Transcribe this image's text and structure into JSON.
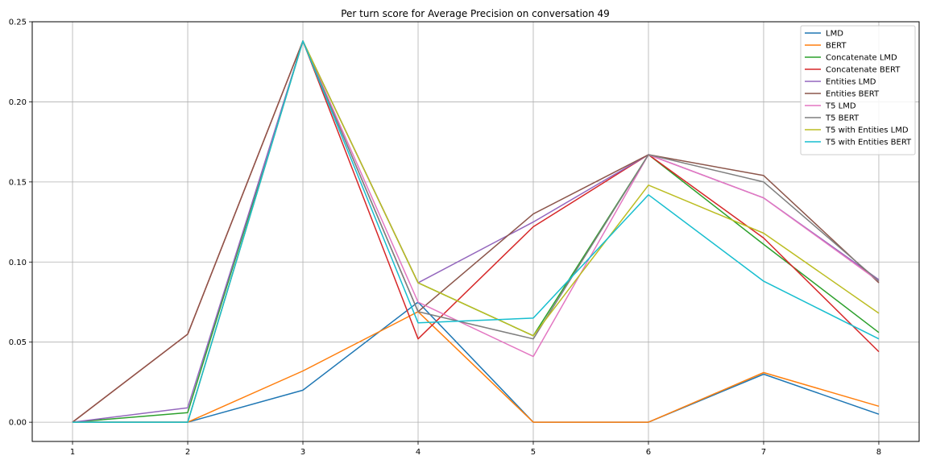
{
  "chart_data": {
    "type": "line",
    "title": "Per turn score for Average Precision on conversation 49",
    "xlabel": "",
    "ylabel": "",
    "x": [
      1,
      2,
      3,
      4,
      5,
      6,
      7,
      8
    ],
    "xlim": [
      0.65,
      8.35
    ],
    "ylim": [
      -0.012,
      0.25
    ],
    "xticks": [
      "1",
      "2",
      "3",
      "4",
      "5",
      "6",
      "7",
      "8"
    ],
    "yticks": [
      "0.00",
      "0.05",
      "0.10",
      "0.15",
      "0.20",
      "0.25"
    ],
    "grid": true,
    "legend_position": "top-right",
    "series": [
      {
        "name": "LMD",
        "color": "#1f77b4",
        "values": [
          0.0,
          0.0,
          0.02,
          0.075,
          0.0,
          0.0,
          0.03,
          0.005
        ]
      },
      {
        "name": "BERT",
        "color": "#ff7f0e",
        "values": [
          0.0,
          0.0,
          0.032,
          0.069,
          0.0,
          0.0,
          0.031,
          0.01
        ]
      },
      {
        "name": "Concatenate LMD",
        "color": "#2ca02c",
        "values": [
          0.0,
          0.006,
          0.238,
          0.087,
          0.054,
          0.167,
          0.111,
          0.056
        ]
      },
      {
        "name": "Concatenate BERT",
        "color": "#d62728",
        "values": [
          0.0,
          0.055,
          0.238,
          0.052,
          0.122,
          0.167,
          0.115,
          0.044
        ]
      },
      {
        "name": "Entities LMD",
        "color": "#9467bd",
        "values": [
          0.0,
          0.009,
          0.238,
          0.087,
          0.125,
          0.167,
          0.14,
          0.089
        ]
      },
      {
        "name": "Entities BERT",
        "color": "#8c564b",
        "values": [
          0.0,
          0.055,
          0.238,
          0.069,
          0.13,
          0.167,
          0.154,
          0.087
        ]
      },
      {
        "name": "T5 LMD",
        "color": "#e377c2",
        "values": [
          0.0,
          0.0,
          0.238,
          0.075,
          0.041,
          0.167,
          0.14,
          0.088
        ]
      },
      {
        "name": "T5 BERT",
        "color": "#7f7f7f",
        "values": [
          0.0,
          0.0,
          0.238,
          0.069,
          0.052,
          0.167,
          0.15,
          0.088
        ]
      },
      {
        "name": "T5 with Entities LMD",
        "color": "#bcbd22",
        "values": [
          0.0,
          0.0,
          0.238,
          0.087,
          0.054,
          0.148,
          0.118,
          0.068
        ]
      },
      {
        "name": "T5 with Entities BERT",
        "color": "#17becf",
        "values": [
          0.0,
          0.0,
          0.238,
          0.062,
          0.065,
          0.142,
          0.088,
          0.052
        ]
      }
    ]
  }
}
